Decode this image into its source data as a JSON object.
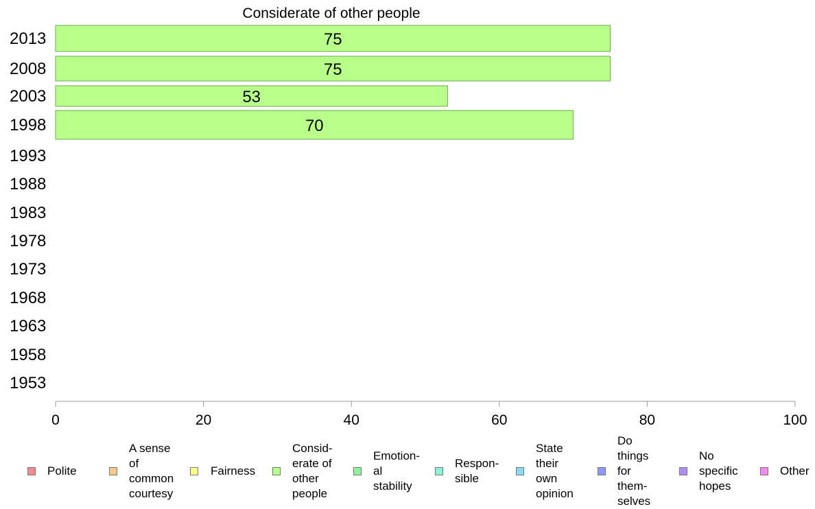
{
  "chart_data": {
    "type": "bar",
    "orientation": "horizontal",
    "title": "Considerate of other people",
    "xlabel": "",
    "ylabel": "",
    "xlim": [
      0,
      100
    ],
    "x_ticks": [
      0,
      20,
      40,
      60,
      80,
      100
    ],
    "categories": [
      "2013",
      "2008",
      "2003",
      "1998",
      "1993",
      "1988",
      "1983",
      "1978",
      "1973",
      "1968",
      "1963",
      "1958",
      "1953"
    ],
    "values": [
      75,
      75,
      53,
      70,
      null,
      null,
      null,
      null,
      null,
      null,
      null,
      null,
      null
    ],
    "data_labels": [
      "75",
      "75",
      "53",
      "70",
      "",
      "",
      "",
      "",
      "",
      "",
      "",
      "",
      ""
    ],
    "bar_color": "#b8ff8a",
    "bar_border_color": "#6aa84f",
    "grid": false,
    "legend_position": "bottom",
    "legend": [
      {
        "label": "Polite",
        "color": "#f58a8a"
      },
      {
        "label": "A sense\nof\ncommon\ncourtesy",
        "color": "#f8c88a"
      },
      {
        "label": "Fairness",
        "color": "#ffff8a"
      },
      {
        "label": "Consid-\nerate of\nother\npeople",
        "color": "#b8ff8a"
      },
      {
        "label": "Emotion-\nal\nstability",
        "color": "#8af598"
      },
      {
        "label": "Respon-\nsible",
        "color": "#8af5d8"
      },
      {
        "label": "State\ntheir\nown\nopinion",
        "color": "#8ad8f8"
      },
      {
        "label": "Do\nthings\nfor\nthem-\nselves",
        "color": "#8a9af8"
      },
      {
        "label": "No\nspecific\nhopes",
        "color": "#b08af5"
      },
      {
        "label": "Other",
        "color": "#f58af5"
      }
    ]
  }
}
